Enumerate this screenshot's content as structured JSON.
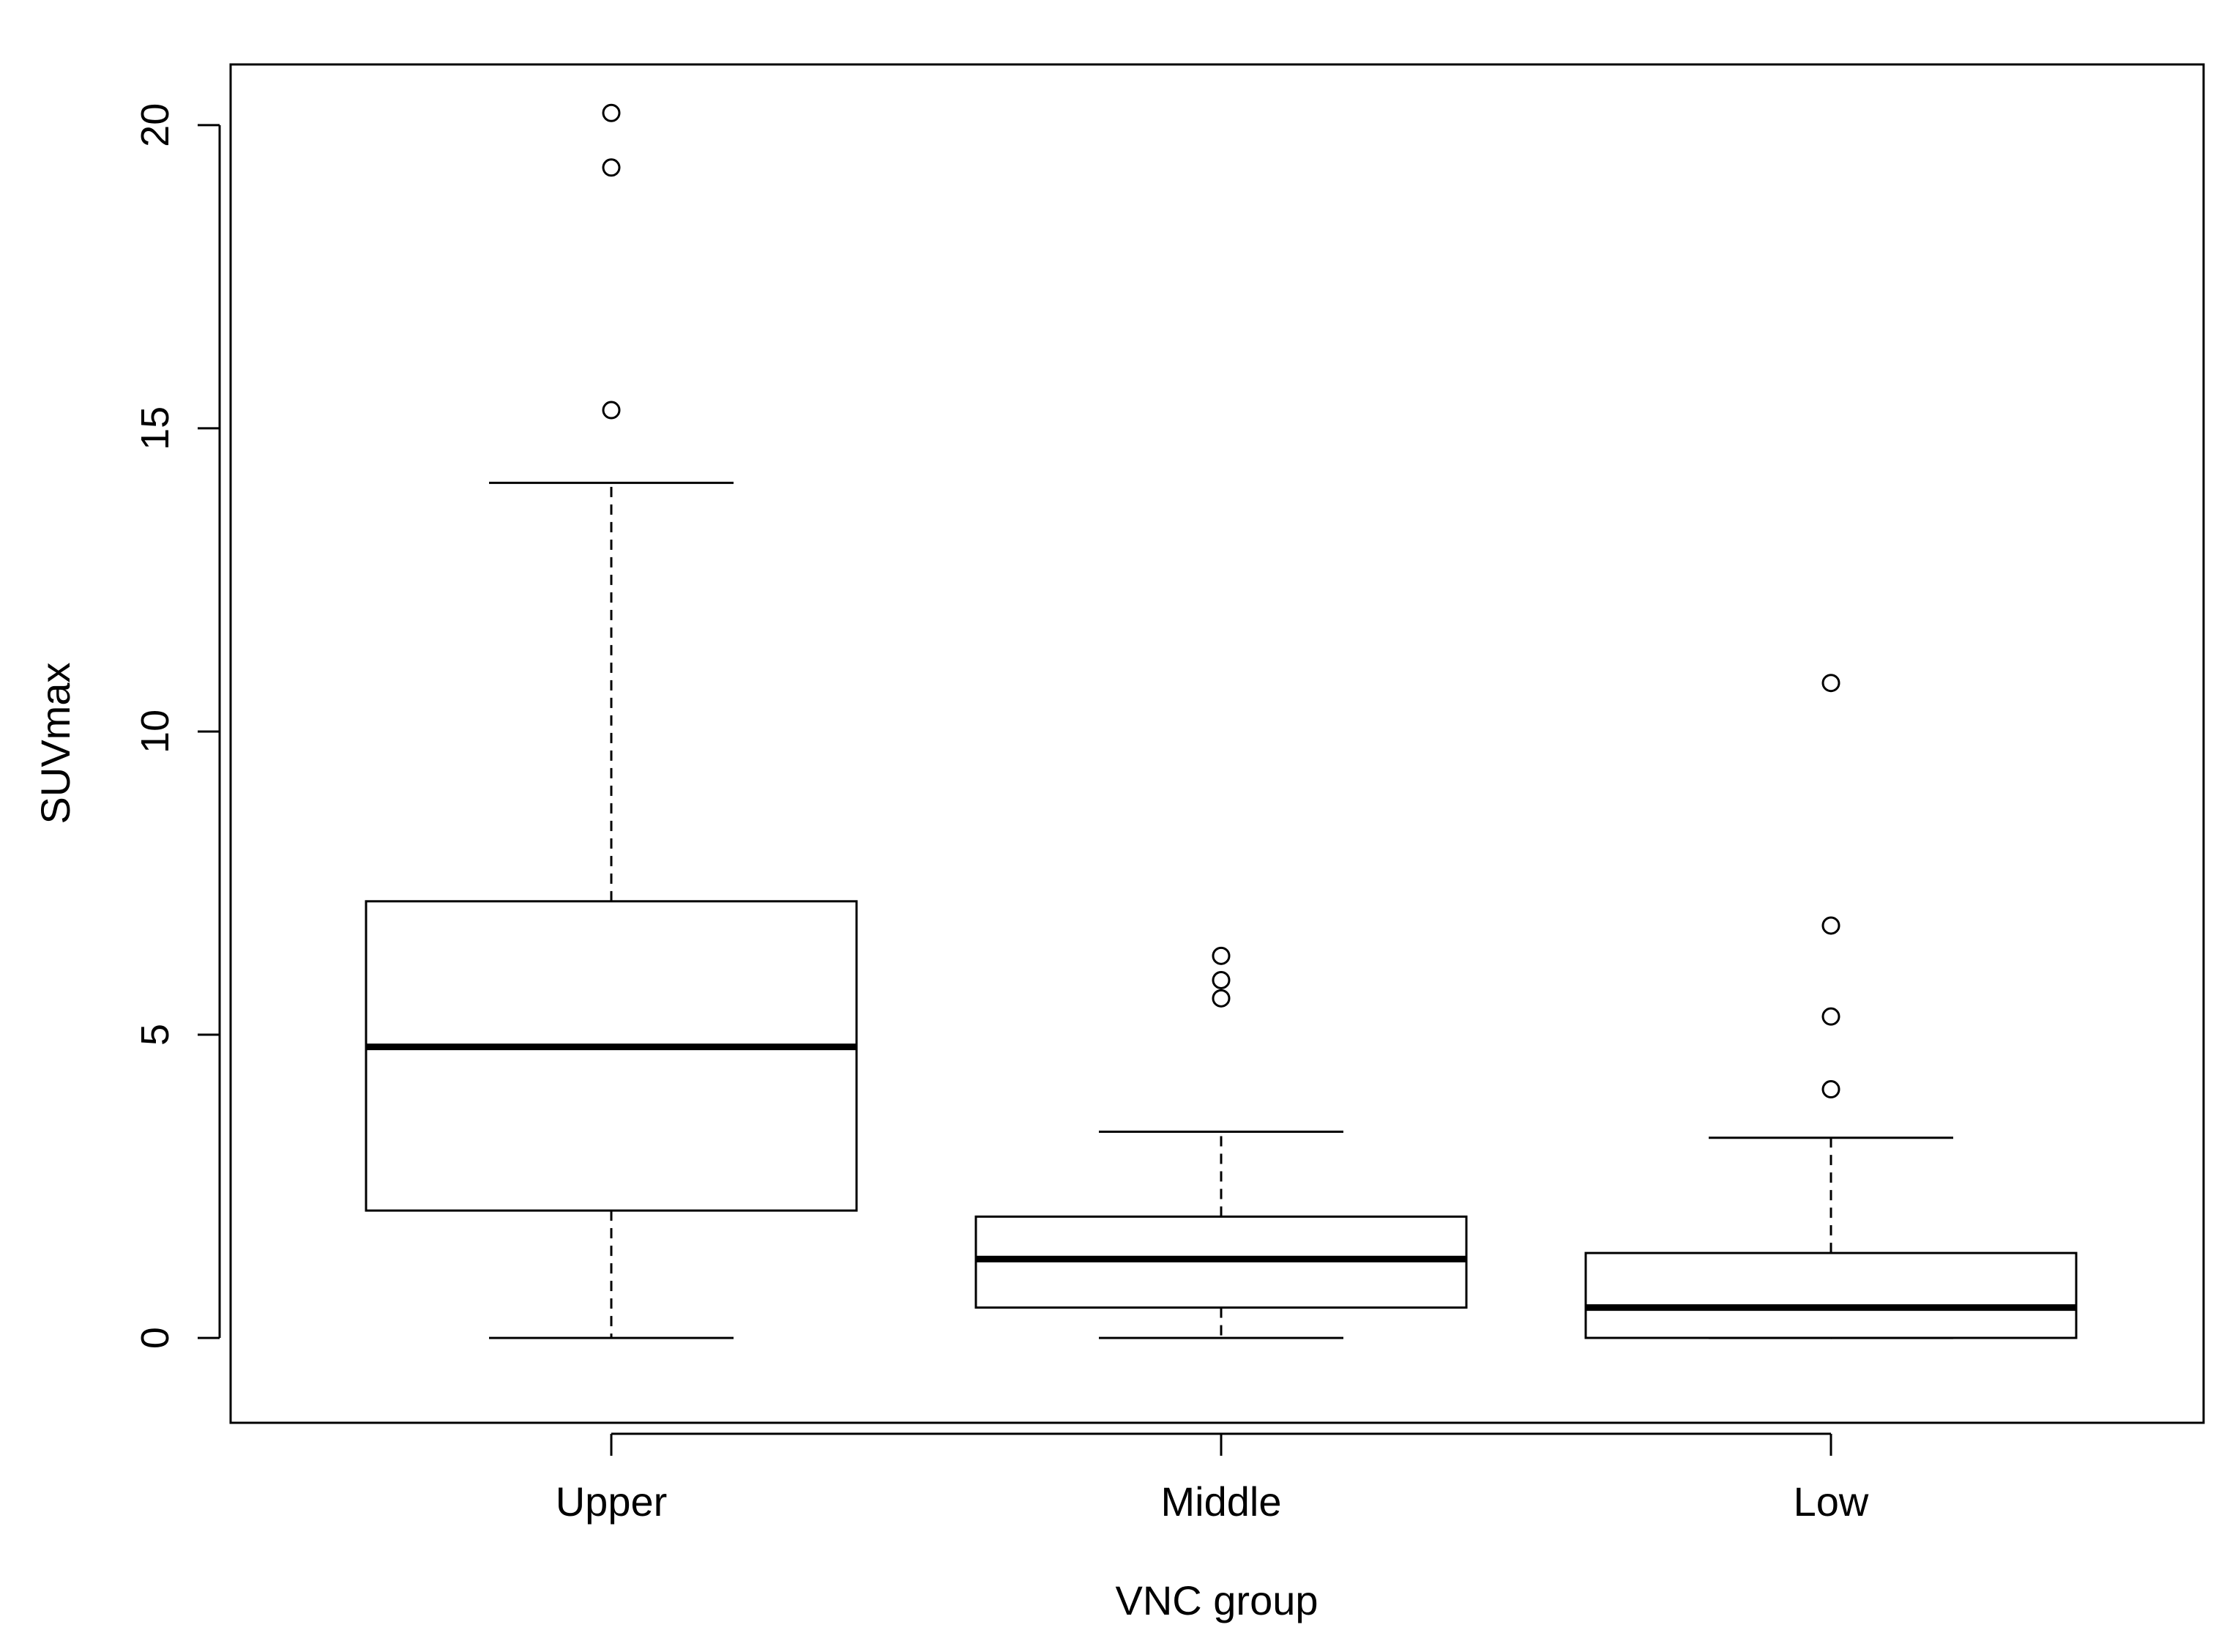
{
  "chart_data": {
    "type": "box",
    "xlabel": "VNC group",
    "ylabel": "SUVmax",
    "ylim": [
      -1.4,
      21.0
    ],
    "yticks": [
      "0",
      "5",
      "10",
      "15",
      "20"
    ],
    "ytick_values": [
      0,
      5,
      10,
      15,
      20
    ],
    "grid": false,
    "categories": [
      "Upper",
      "Middle",
      "Low"
    ],
    "boxes": [
      {
        "category": "Upper",
        "whisker_low": 0.0,
        "q1": 2.1,
        "median": 4.8,
        "q3": 7.2,
        "whisker_high": 14.1,
        "outliers": [
          15.3,
          19.3,
          20.2
        ]
      },
      {
        "category": "Middle",
        "whisker_low": 0.0,
        "q1": 0.5,
        "median": 1.3,
        "q3": 2.0,
        "whisker_high": 3.4,
        "outliers": [
          5.6,
          5.9,
          6.3
        ]
      },
      {
        "category": "Low",
        "whisker_low": 0.0,
        "q1": 0.0,
        "median": 0.5,
        "q3": 1.4,
        "whisker_high": 3.3,
        "outliers": [
          4.1,
          5.3,
          6.8,
          10.8
        ]
      }
    ],
    "colors": {
      "line": "#000000",
      "background": "#ffffff"
    }
  }
}
